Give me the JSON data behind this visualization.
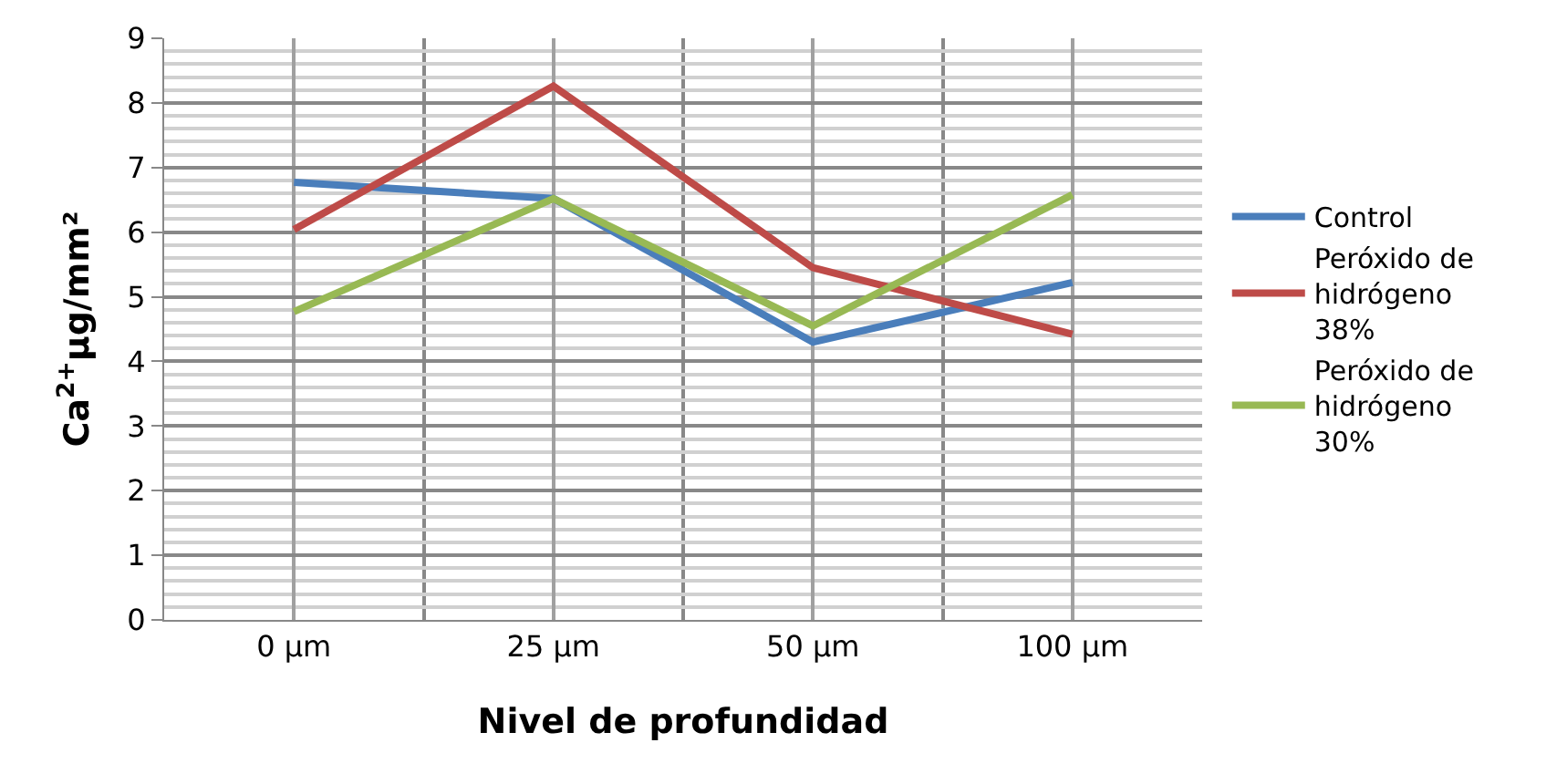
{
  "chart_data": {
    "type": "line",
    "xlabel": "Nivel de profundidad",
    "ylabel": "Ca$^{2+}$µg/mm²",
    "categories": [
      "0 µm",
      "25 µm",
      "50 µm",
      "100 µm"
    ],
    "series": [
      {
        "name": "Control",
        "color": "#4a7ebb",
        "values": [
          6.77,
          6.52,
          4.3,
          5.22
        ]
      },
      {
        "name": "Peróxido de hidrógeno 38%",
        "color": "#be4b48",
        "values": [
          6.04,
          8.26,
          5.45,
          4.42
        ]
      },
      {
        "name": "Peróxido de hidrógeno 30%",
        "color": "#98b954",
        "values": [
          4.77,
          6.52,
          4.55,
          6.58
        ]
      }
    ],
    "ylim": [
      0,
      9
    ],
    "yticks": [
      0,
      1,
      2,
      3,
      4,
      5,
      6,
      7,
      8,
      9
    ],
    "grid": true,
    "legend": "right",
    "marker": "none",
    "line_style": "solid"
  }
}
